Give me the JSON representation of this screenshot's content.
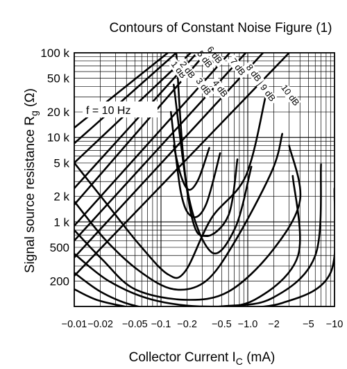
{
  "chart_data": {
    "type": "line",
    "title": "Contours of Constant Noise Figure (1)",
    "xlabel": "Collector Current",
    "xlabel_symbol": "I",
    "xlabel_sub": "C",
    "xlabel_unit": "(mA)",
    "ylabel": "Signal source resistance",
    "ylabel_symbol": "R",
    "ylabel_sub": "g",
    "ylabel_unit": "(Ω)",
    "x_scale": "log",
    "y_scale": "log",
    "xlim": [
      0.01,
      10
    ],
    "ylim": [
      100,
      100000
    ],
    "x_ticks": [
      {
        "value": 0.01,
        "label": "−0.01"
      },
      {
        "value": 0.02,
        "label": "−0.02"
      },
      {
        "value": 0.05,
        "label": "−0.05"
      },
      {
        "value": 0.1,
        "label": "−0.1"
      },
      {
        "value": 0.2,
        "label": "−0.2"
      },
      {
        "value": 0.5,
        "label": "−0.5"
      },
      {
        "value": 1,
        "label": "−1.0"
      },
      {
        "value": 2,
        "label": "−2"
      },
      {
        "value": 5,
        "label": "−5"
      },
      {
        "value": 10,
        "label": "−10"
      }
    ],
    "y_ticks": [
      {
        "value": 100000,
        "label": "100 k"
      },
      {
        "value": 50000,
        "label": "50 k"
      },
      {
        "value": 20000,
        "label": "20 k"
      },
      {
        "value": 10000,
        "label": "10 k"
      },
      {
        "value": 5000,
        "label": "5 k"
      },
      {
        "value": 2000,
        "label": "2 k"
      },
      {
        "value": 1000,
        "label": "1 k"
      },
      {
        "value": 500,
        "label": "500"
      },
      {
        "value": 200,
        "label": "200"
      }
    ],
    "grid": true,
    "annotation": "f = 10 Hz",
    "series": [
      {
        "name": "1 dB",
        "x": [
          0.14,
          0.17,
          0.21,
          0.27,
          0.36
        ],
        "y": [
          8000,
          3500,
          2400,
          3200,
          7500
        ]
      },
      {
        "name": "2 dB",
        "x": [
          0.13,
          0.17,
          0.23,
          0.33,
          0.48
        ],
        "y": [
          20000,
          2200,
          1150,
          1600,
          6500
        ]
      },
      {
        "name": "3 dB",
        "x": [
          0.14,
          0.22,
          0.33,
          0.6,
          0.76
        ],
        "y": [
          42000,
          1300,
          680,
          1200,
          5500
        ]
      },
      {
        "name": "4 dB",
        "x": [
          0.15,
          0.2,
          0.38,
          0.72,
          1.1
        ],
        "y": [
          100000,
          2500,
          440,
          860,
          4500
        ]
      },
      {
        "name": "5 dB",
        "x": [
          0.01,
          0.026,
          0.057,
          0.12,
          0.19,
          0.38,
          0.95,
          1.6
        ],
        "y": [
          5000,
          1450,
          530,
          240,
          260,
          1100,
          3500,
          30000
        ]
      },
      {
        "name": "6 dB",
        "x": [
          0.01,
          0.023,
          0.057,
          0.14,
          0.33,
          0.72,
          1.9,
          2.5
        ],
        "y": [
          1750,
          610,
          260,
          160,
          200,
          600,
          4000,
          11000
        ]
      },
      {
        "name": "7 dB",
        "x": [
          0.01,
          0.021,
          0.05,
          0.19,
          0.6,
          1.9,
          4.0,
          3.0
        ],
        "y": [
          800,
          360,
          160,
          120,
          150,
          450,
          1800,
          8000
        ]
      },
      {
        "name": "8 dB",
        "x": [
          0.01,
          0.025,
          0.08,
          0.33,
          1.2,
          3.8,
          3.3
        ],
        "y": [
          420,
          200,
          120,
          100,
          120,
          400,
          3500
        ]
      },
      {
        "name": "9 dB",
        "x": [
          0.01,
          0.02,
          0.045,
          0.12,
          0.48,
          1.9,
          6.0,
          7.0
        ],
        "y": [
          250,
          150,
          105,
          90,
          100,
          125,
          400,
          4800
        ]
      },
      {
        "name": "10 dB",
        "x": [
          0.01,
          0.018,
          0.038,
          0.1,
          0.5,
          2.5,
          9.0,
          10.0
        ],
        "y": [
          160,
          120,
          100,
          85,
          95,
          110,
          250,
          2500
        ]
      }
    ],
    "diagonal_series": [
      {
        "name": "1 dB",
        "x": [
          0.12,
          0.01
        ],
        "y": [
          100000,
          13000
        ]
      },
      {
        "name": "2 dB",
        "x": [
          0.15,
          0.01
        ],
        "y": [
          100000,
          8500
        ]
      },
      {
        "name": "3 dB",
        "x": [
          0.22,
          0.01
        ],
        "y": [
          100000,
          5000
        ]
      },
      {
        "name": "5 dB",
        "x": [
          0.26,
          0.01
        ],
        "y": [
          100000,
          2500
        ]
      },
      {
        "name": "6 dB",
        "x": [
          0.33,
          0.01
        ],
        "y": [
          100000,
          1600
        ]
      },
      {
        "name": "7 dB",
        "x": [
          0.62,
          0.01
        ],
        "y": [
          100000,
          900
        ]
      },
      {
        "name": "8 dB",
        "x": [
          0.95,
          0.01
        ],
        "y": [
          100000,
          600
        ]
      },
      {
        "name": "9 dB",
        "x": [
          1.5,
          0.01
        ],
        "y": [
          100000,
          380
        ]
      },
      {
        "name": "10 dB",
        "x": [
          3.0,
          0.01
        ],
        "y": [
          100000,
          230
        ]
      }
    ],
    "labels": [
      {
        "text": "1 dB",
        "x": 0.15,
        "y": 60000
      },
      {
        "text": "2 dB",
        "x": 0.19,
        "y": 60000
      },
      {
        "text": "3 dB",
        "x": 0.29,
        "y": 38000
      },
      {
        "text": "4 dB",
        "x": 0.45,
        "y": 36000
      },
      {
        "text": "5 dB",
        "x": 0.3,
        "y": 80000
      },
      {
        "text": "6 dB",
        "x": 0.39,
        "y": 90000
      },
      {
        "text": "7 dB",
        "x": 0.72,
        "y": 65000
      },
      {
        "text": "8 dB",
        "x": 1.1,
        "y": 55000
      },
      {
        "text": "9 dB",
        "x": 1.6,
        "y": 32000
      },
      {
        "text": "10 dB",
        "x": 2.9,
        "y": 30000
      }
    ]
  }
}
